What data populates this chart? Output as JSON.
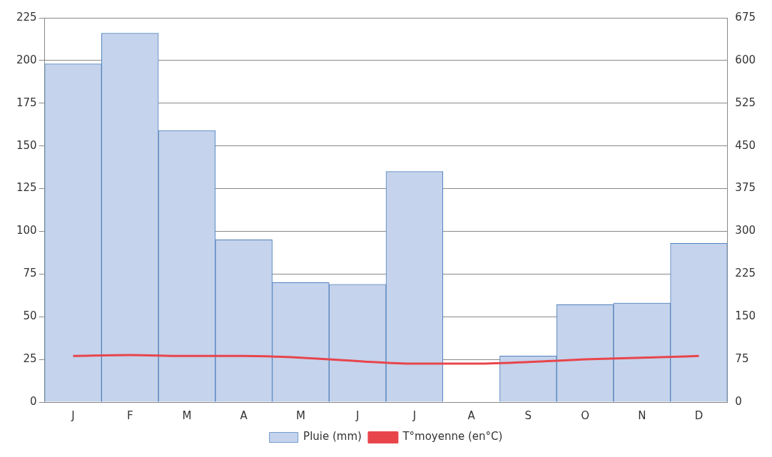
{
  "chart_data": {
    "type": "bar",
    "categories": [
      "J",
      "F",
      "M",
      "A",
      "M",
      "J",
      "J",
      "A",
      "S",
      "O",
      "N",
      "D"
    ],
    "series": [
      {
        "name": "Pluie (mm)",
        "color": "#c5d3ec",
        "values": [
          198,
          216,
          159,
          95,
          70,
          69,
          135,
          0,
          27,
          57,
          58,
          93
        ]
      },
      {
        "name": "T°moyenne (en°C)",
        "type": "line",
        "color": "#e8454b",
        "values": [
          27,
          27.5,
          27,
          27,
          26,
          24,
          22.5,
          22.5,
          23.5,
          25,
          26,
          27
        ]
      }
    ],
    "ylim": [
      0,
      225
    ],
    "yticks": [
      0,
      25,
      50,
      75,
      100,
      125,
      150,
      175,
      200,
      225
    ],
    "y2lim": [
      0,
      675
    ],
    "y2ticks": [
      0,
      75,
      150,
      225,
      300,
      375,
      450,
      525,
      600,
      675
    ],
    "grid": "y",
    "legend": "bottom",
    "marker": "none",
    "line_style": "solid"
  }
}
